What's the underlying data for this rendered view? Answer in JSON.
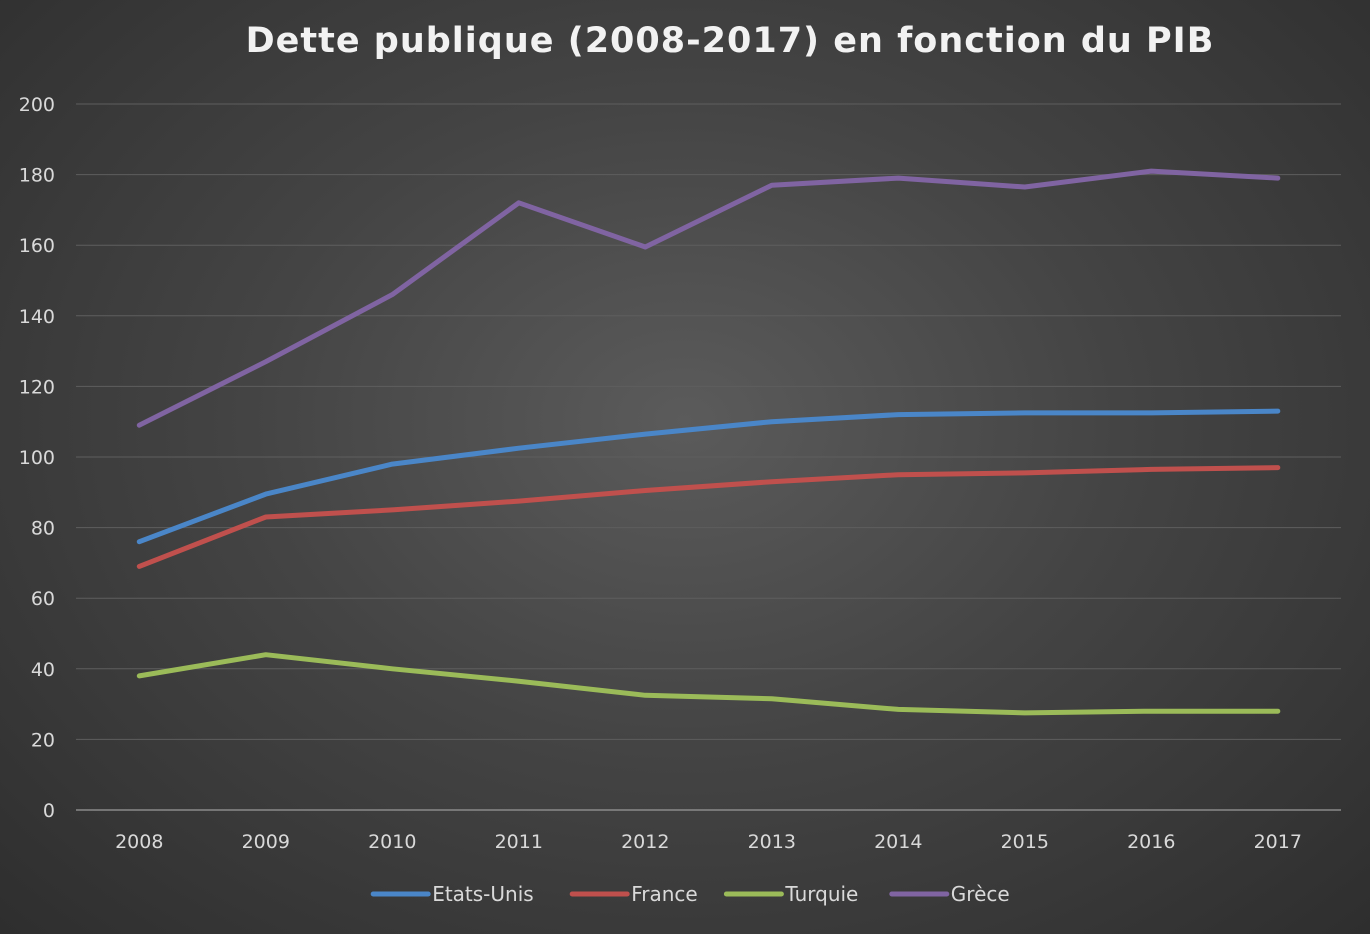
{
  "chart_data": {
    "type": "line",
    "title": "Dette publique (2008-2017) en fonction du PIB",
    "xlabel": "",
    "ylabel": "",
    "categories": [
      "2008",
      "2009",
      "2010",
      "2011",
      "2012",
      "2013",
      "2014",
      "2015",
      "2016",
      "2017"
    ],
    "ylim": [
      0,
      200
    ],
    "yticks": [
      0,
      20,
      40,
      60,
      80,
      100,
      120,
      140,
      160,
      180,
      200
    ],
    "grid": true,
    "legend_position": "bottom",
    "series": [
      {
        "name": "Etats-Unis",
        "color": "#4a86c8",
        "values": [
          76,
          89.5,
          98,
          102.5,
          106.5,
          110,
          112,
          112.5,
          112.5,
          113
        ]
      },
      {
        "name": "France",
        "color": "#c0504d",
        "values": [
          69,
          83,
          85,
          87.5,
          90.5,
          93,
          95,
          95.5,
          96.5,
          97
        ]
      },
      {
        "name": "Turquie",
        "color": "#9bbb59",
        "values": [
          38,
          44,
          40,
          36.5,
          32.5,
          31.5,
          28.5,
          27.5,
          28,
          28
        ]
      },
      {
        "name": "Grèce",
        "color": "#8064a2",
        "values": [
          109,
          127,
          146,
          172,
          159.5,
          177,
          179,
          176.5,
          181,
          179
        ]
      }
    ]
  }
}
